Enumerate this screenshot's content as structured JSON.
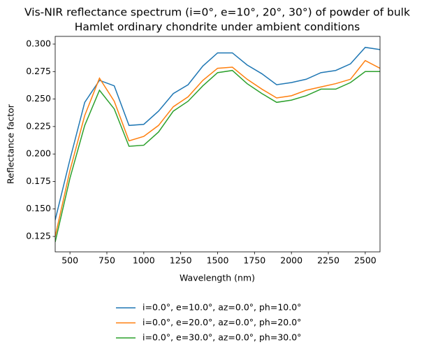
{
  "chart_data": {
    "type": "line",
    "title": [
      "Vis-NIR reflectance spectrum (i=0°, e=10°, 20°, 30°) of powder of bulk",
      "Hamlet ordinary chondrite under ambient conditions"
    ],
    "xlabel": "Wavelength (nm)",
    "ylabel": "Reflectance factor",
    "x": [
      400,
      500,
      600,
      700,
      800,
      900,
      1000,
      1100,
      1200,
      1300,
      1400,
      1500,
      1600,
      1700,
      1800,
      1900,
      2000,
      2100,
      2200,
      2300,
      2400,
      2500,
      2600
    ],
    "series": [
      {
        "name": "i=0.0°, e=10.0°, az=0.0°, ph=10.0°",
        "color": "#1f77b4",
        "values": [
          0.14,
          0.195,
          0.247,
          0.267,
          0.262,
          0.226,
          0.227,
          0.239,
          0.255,
          0.263,
          0.28,
          0.292,
          0.292,
          0.281,
          0.273,
          0.263,
          0.265,
          0.268,
          0.274,
          0.276,
          0.282,
          0.297,
          0.295
        ]
      },
      {
        "name": "i=0.0°, e=20.0°, az=0.0°, ph=20.0°",
        "color": "#ff7f0e",
        "values": [
          0.125,
          0.185,
          0.235,
          0.269,
          0.248,
          0.212,
          0.216,
          0.226,
          0.243,
          0.252,
          0.267,
          0.278,
          0.279,
          0.268,
          0.259,
          0.251,
          0.253,
          0.258,
          0.261,
          0.264,
          0.268,
          0.285,
          0.278
        ]
      },
      {
        "name": "i=0.0°, e=30.0°, az=0.0°, ph=30.0°",
        "color": "#2ca02c",
        "values": [
          0.12,
          0.178,
          0.226,
          0.258,
          0.241,
          0.207,
          0.208,
          0.22,
          0.239,
          0.248,
          0.262,
          0.274,
          0.276,
          0.264,
          0.255,
          0.247,
          0.249,
          0.253,
          0.259,
          0.259,
          0.265,
          0.275,
          0.275
        ]
      }
    ],
    "xlim": [
      400,
      2600
    ],
    "ylim": [
      0.111,
      0.307
    ],
    "xticks": [
      500,
      750,
      1000,
      1250,
      1500,
      1750,
      2000,
      2250,
      2500
    ],
    "yticks": [
      0.125,
      {
        "value": 0.15,
        "label": "0.150"
      },
      0.175,
      {
        "value": 0.2,
        "label": "0.200"
      },
      0.225,
      {
        "value": 0.25,
        "label": "0.250"
      },
      0.275,
      {
        "value": 0.3,
        "label": "0.300"
      }
    ],
    "legend": "lower center"
  }
}
